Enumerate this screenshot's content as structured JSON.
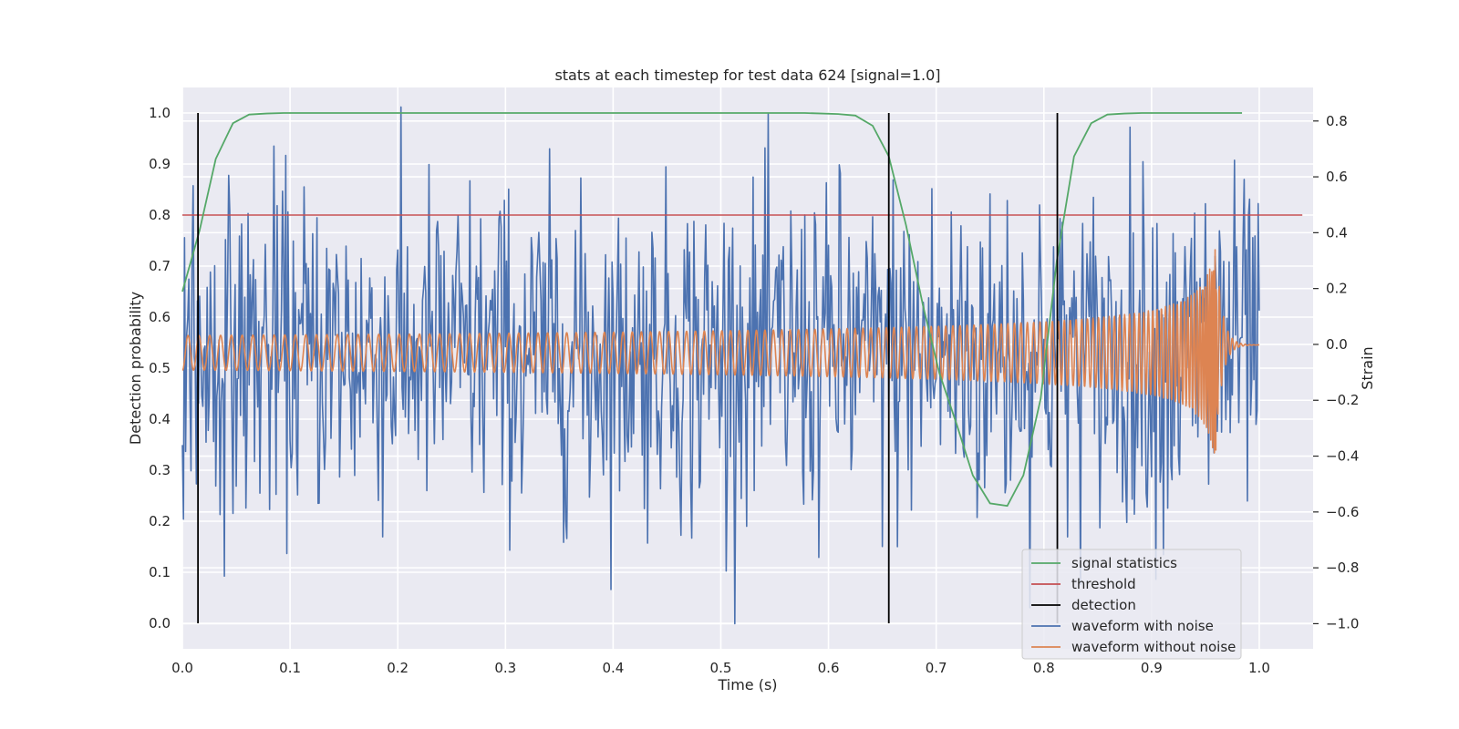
{
  "chart_data": {
    "type": "line",
    "title": "stats at each timestep for test data 624 [signal=1.0]",
    "xlabel": "Time (s)",
    "ylabel": "Detection probability",
    "y2label": "Strain",
    "xlim": [
      0.0,
      1.05
    ],
    "ylim": [
      -0.05,
      1.05
    ],
    "y2lim": [
      -1.09,
      0.92
    ],
    "xticks": [
      0.0,
      0.1,
      0.2,
      0.3,
      0.4,
      0.5,
      0.6,
      0.7,
      0.8,
      0.9,
      1.0
    ],
    "xtick_labels": [
      "0.0",
      "0.1",
      "0.2",
      "0.3",
      "0.4",
      "0.5",
      "0.6",
      "0.7",
      "0.8",
      "0.9",
      "1.0"
    ],
    "yticks": [
      0.0,
      0.1,
      0.2,
      0.3,
      0.4,
      0.5,
      0.6,
      0.7,
      0.8,
      0.9,
      1.0
    ],
    "ytick_labels": [
      "0.0",
      "0.1",
      "0.2",
      "0.3",
      "0.4",
      "0.5",
      "0.6",
      "0.7",
      "0.8",
      "0.9",
      "1.0"
    ],
    "y2ticks": [
      -1.0,
      -0.8,
      -0.6,
      -0.4,
      -0.2,
      0.0,
      0.2,
      0.4,
      0.6,
      0.8
    ],
    "y2tick_labels": [
      "−1.0",
      "−0.8",
      "−0.6",
      "−0.4",
      "−0.2",
      "0.0",
      "0.2",
      "0.4",
      "0.6",
      "0.8"
    ],
    "grid": true,
    "legend_position": "lower-right",
    "series": [
      {
        "name": "signal statistics",
        "color": "#55a868",
        "axis": "left",
        "x": [
          0.0,
          0.016,
          0.031,
          0.047,
          0.062,
          0.078,
          0.094,
          0.2,
          0.3,
          0.4,
          0.5,
          0.578,
          0.594,
          0.609,
          0.625,
          0.641,
          0.656,
          0.672,
          0.688,
          0.703,
          0.719,
          0.734,
          0.75,
          0.766,
          0.781,
          0.797,
          0.812,
          0.828,
          0.844,
          0.859,
          0.875,
          0.891,
          0.906,
          0.922,
          0.938,
          0.953,
          0.969,
          0.984
        ],
        "y": [
          0.65,
          0.77,
          0.91,
          0.98,
          0.997,
          0.999,
          1.0,
          1.0,
          1.0,
          1.0,
          1.0,
          1.0,
          0.999,
          0.998,
          0.995,
          0.975,
          0.915,
          0.78,
          0.62,
          0.49,
          0.39,
          0.29,
          0.235,
          0.23,
          0.29,
          0.44,
          0.71,
          0.915,
          0.98,
          0.997,
          0.999,
          1.0,
          1.0,
          1.0,
          1.0,
          1.0,
          1.0,
          1.0
        ]
      },
      {
        "name": "threshold",
        "color": "#c44e52",
        "axis": "left",
        "x": [
          0.0,
          1.04
        ],
        "y": [
          0.8,
          0.8
        ]
      },
      {
        "name": "detection",
        "color": "#000000",
        "axis": "left",
        "x": [
          0.0145,
          0.656,
          0.8125
        ],
        "y_range": [
          0.0,
          1.0
        ]
      },
      {
        "name": "waveform with noise",
        "color": "#4c72b0",
        "axis": "right",
        "description_x_range": [
          0.0,
          1.0
        ],
        "amplitude_range": [
          -1.0,
          0.85
        ]
      },
      {
        "name": "waveform without noise",
        "color": "#dd8452",
        "axis": "right",
        "description_x_range": [
          0.0,
          1.0
        ],
        "amplitude_range": [
          -0.4,
          0.4
        ]
      }
    ]
  }
}
